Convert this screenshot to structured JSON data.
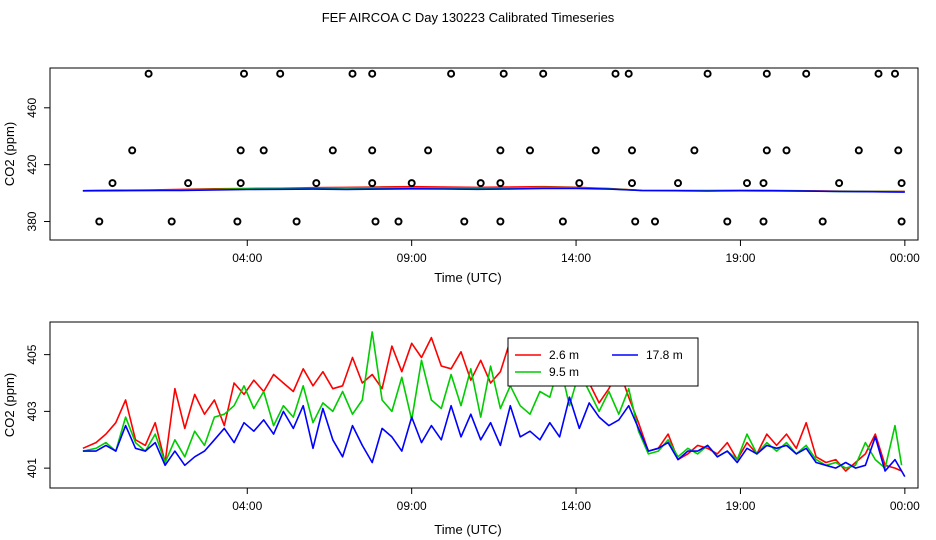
{
  "figure": {
    "title": "FEF AIRCOA C  Day 130223  Calibrated Timeseries"
  },
  "colors": {
    "series_2_6m": "#ff0000",
    "series_9_5m": "#00cc00",
    "series_17_8m": "#0000ff",
    "axes": "#000000",
    "background": "#ffffff"
  },
  "chart_data": [
    {
      "type": "line",
      "title": "",
      "xlabel": "Time (UTC)",
      "ylabel": "CO2 (ppm)",
      "x_unit": "hours UTC",
      "xlim": [
        -2.0,
        24.4
      ],
      "ylim": [
        367,
        488
      ],
      "x_ticks": [
        4,
        9,
        14,
        19,
        24
      ],
      "x_tick_labels": [
        "04:00",
        "09:00",
        "14:00",
        "19:00",
        "00:00"
      ],
      "y_ticks": [
        380,
        420,
        460
      ],
      "y_tick_labels": [
        "380",
        "420",
        "460"
      ],
      "grid": false,
      "legend": "none",
      "markers": {
        "name": "",
        "style": "open-circle",
        "points": [
          [
            -0.5,
            380
          ],
          [
            1.7,
            380
          ],
          [
            3.7,
            380
          ],
          [
            5.5,
            380
          ],
          [
            7.9,
            380
          ],
          [
            8.6,
            380
          ],
          [
            10.6,
            380
          ],
          [
            11.7,
            380
          ],
          [
            13.6,
            380
          ],
          [
            15.8,
            380
          ],
          [
            16.4,
            380
          ],
          [
            18.6,
            380
          ],
          [
            19.7,
            380
          ],
          [
            21.5,
            380
          ],
          [
            23.9,
            380
          ],
          [
            -0.1,
            407
          ],
          [
            2.2,
            407
          ],
          [
            3.8,
            407
          ],
          [
            6.1,
            407
          ],
          [
            7.8,
            407
          ],
          [
            9.0,
            407
          ],
          [
            11.1,
            407
          ],
          [
            11.7,
            407
          ],
          [
            14.1,
            407
          ],
          [
            15.7,
            407
          ],
          [
            17.1,
            407
          ],
          [
            19.2,
            407
          ],
          [
            19.7,
            407
          ],
          [
            22.0,
            407
          ],
          [
            23.9,
            407
          ],
          [
            0.5,
            430
          ],
          [
            3.8,
            430
          ],
          [
            4.5,
            430
          ],
          [
            6.6,
            430
          ],
          [
            7.8,
            430
          ],
          [
            9.5,
            430
          ],
          [
            11.7,
            430
          ],
          [
            12.6,
            430
          ],
          [
            14.6,
            430
          ],
          [
            15.7,
            430
          ],
          [
            17.6,
            430
          ],
          [
            19.8,
            430
          ],
          [
            20.4,
            430
          ],
          [
            22.6,
            430
          ],
          [
            23.8,
            430
          ],
          [
            1.0,
            484
          ],
          [
            3.9,
            484
          ],
          [
            5.0,
            484
          ],
          [
            7.2,
            484
          ],
          [
            7.8,
            484
          ],
          [
            10.2,
            484
          ],
          [
            11.8,
            484
          ],
          [
            13.0,
            484
          ],
          [
            15.2,
            484
          ],
          [
            15.6,
            484
          ],
          [
            18.0,
            484
          ],
          [
            19.8,
            484
          ],
          [
            21.0,
            484
          ],
          [
            23.2,
            484
          ],
          [
            23.7,
            484
          ]
        ]
      },
      "series": [
        {
          "name": "",
          "color": "#ff0000",
          "x": [
            -1.0,
            0.0,
            1.0,
            2.0,
            3.0,
            4.0,
            5.0,
            6.0,
            7.0,
            8.0,
            9.0,
            10.0,
            11.0,
            12.0,
            13.0,
            14.0,
            15.0,
            16.0,
            17.0,
            18.0,
            19.0,
            20.0,
            21.0,
            22.0,
            23.0,
            24.0
          ],
          "y": [
            401.7,
            402.0,
            402.2,
            402.6,
            403.0,
            403.2,
            403.4,
            403.8,
            404.0,
            404.3,
            404.5,
            404.3,
            404.0,
            404.2,
            404.5,
            404.1,
            403.2,
            401.9,
            401.8,
            401.8,
            401.9,
            401.8,
            401.6,
            401.3,
            401.2,
            401.2
          ]
        },
        {
          "name": "",
          "color": "#00cc00",
          "x": [
            -1.0,
            0.0,
            1.0,
            2.0,
            3.0,
            4.0,
            5.0,
            6.0,
            7.0,
            8.0,
            9.0,
            10.0,
            11.0,
            12.0,
            13.0,
            14.0,
            15.0,
            16.0,
            17.0,
            18.0,
            19.0,
            20.0,
            21.0,
            22.0,
            23.0,
            24.0
          ],
          "y": [
            401.6,
            401.8,
            401.9,
            402.3,
            402.6,
            403.0,
            403.2,
            403.4,
            403.7,
            403.8,
            403.7,
            403.6,
            403.5,
            403.6,
            403.9,
            403.8,
            403.0,
            401.8,
            401.7,
            401.6,
            401.8,
            401.7,
            401.5,
            401.2,
            401.1,
            401.0
          ]
        },
        {
          "name": "",
          "color": "#0000ff",
          "x": [
            -1.0,
            0.0,
            1.0,
            2.0,
            3.0,
            4.0,
            5.0,
            6.0,
            7.0,
            8.0,
            9.0,
            10.0,
            11.0,
            12.0,
            13.0,
            14.0,
            15.0,
            16.0,
            17.0,
            18.0,
            19.0,
            20.0,
            21.0,
            22.0,
            23.0,
            24.0
          ],
          "y": [
            401.6,
            401.7,
            401.8,
            401.9,
            402.2,
            402.5,
            402.7,
            402.8,
            402.6,
            402.8,
            403.0,
            402.9,
            402.7,
            402.9,
            403.2,
            403.3,
            402.8,
            401.8,
            401.7,
            401.5,
            401.7,
            401.6,
            401.4,
            401.1,
            401.0,
            400.7
          ]
        }
      ]
    },
    {
      "type": "line",
      "title": "",
      "xlabel": "Time (UTC)",
      "ylabel": "CO2 (ppm)",
      "x_unit": "hours UTC",
      "xlim": [
        -2.0,
        24.4
      ],
      "ylim": [
        400.3,
        406.15
      ],
      "x_ticks": [
        4,
        9,
        14,
        19,
        24
      ],
      "x_tick_labels": [
        "04:00",
        "09:00",
        "14:00",
        "19:00",
        "00:00"
      ],
      "y_ticks": [
        401,
        403,
        405
      ],
      "y_tick_labels": [
        "401",
        "403",
        "405"
      ],
      "grid": false,
      "legend": "upper-center",
      "legend_entries": [
        {
          "label": "2.6 m",
          "color": "#ff0000"
        },
        {
          "label": "17.8 m",
          "color": "#0000ff"
        },
        {
          "label": "9.5 m",
          "color": "#00cc00"
        }
      ],
      "series": [
        {
          "name": "2.6 m",
          "color": "#ff0000",
          "x": [
            -1.0,
            -0.6,
            -0.3,
            0.0,
            0.3,
            0.6,
            0.9,
            1.2,
            1.5,
            1.8,
            2.1,
            2.4,
            2.7,
            3.0,
            3.3,
            3.6,
            3.9,
            4.2,
            4.5,
            4.8,
            5.1,
            5.4,
            5.7,
            6.0,
            6.3,
            6.6,
            6.9,
            7.2,
            7.5,
            7.8,
            8.1,
            8.4,
            8.7,
            9.0,
            9.3,
            9.6,
            9.9,
            10.2,
            10.5,
            10.8,
            11.1,
            11.4,
            11.7,
            12.0,
            12.3,
            12.6,
            12.9,
            13.2,
            13.5,
            13.8,
            14.1,
            14.4,
            14.7,
            15.0,
            15.3,
            15.6,
            15.9,
            16.2,
            16.5,
            16.8,
            17.1,
            17.4,
            17.7,
            18.0,
            18.3,
            18.6,
            18.9,
            19.2,
            19.5,
            19.8,
            20.1,
            20.4,
            20.7,
            21.0,
            21.3,
            21.6,
            21.9,
            22.2,
            22.5,
            22.8,
            23.1,
            23.4,
            23.7,
            23.9
          ],
          "y": [
            401.7,
            401.9,
            402.2,
            402.6,
            403.4,
            402.0,
            401.8,
            402.6,
            401.2,
            403.8,
            402.4,
            403.6,
            402.9,
            403.4,
            402.5,
            404.0,
            403.6,
            404.1,
            403.7,
            404.3,
            404.0,
            403.7,
            404.5,
            403.9,
            404.4,
            403.8,
            403.9,
            404.9,
            404.0,
            404.3,
            403.8,
            405.3,
            404.4,
            405.4,
            404.9,
            405.6,
            404.6,
            404.5,
            405.1,
            404.1,
            404.8,
            404.0,
            404.4,
            405.5,
            404.3,
            404.0,
            404.6,
            405.0,
            404.2,
            405.4,
            404.3,
            404.0,
            403.3,
            403.8,
            404.5,
            403.5,
            402.6,
            401.6,
            401.7,
            402.2,
            401.3,
            401.5,
            401.8,
            401.7,
            401.5,
            401.9,
            401.3,
            401.9,
            401.5,
            402.2,
            401.8,
            402.2,
            401.7,
            402.6,
            401.4,
            401.2,
            401.3,
            400.9,
            401.2,
            401.5,
            402.2,
            401.1,
            401.0,
            400.9
          ]
        },
        {
          "name": "9.5 m",
          "color": "#00cc00",
          "x": [
            -1.0,
            -0.6,
            -0.3,
            0.0,
            0.3,
            0.6,
            0.9,
            1.2,
            1.5,
            1.8,
            2.1,
            2.4,
            2.7,
            3.0,
            3.3,
            3.6,
            3.9,
            4.2,
            4.5,
            4.8,
            5.1,
            5.4,
            5.7,
            6.0,
            6.3,
            6.6,
            6.9,
            7.2,
            7.5,
            7.8,
            8.1,
            8.4,
            8.7,
            9.0,
            9.3,
            9.6,
            9.9,
            10.2,
            10.5,
            10.8,
            11.1,
            11.4,
            11.7,
            12.0,
            12.3,
            12.6,
            12.9,
            13.2,
            13.5,
            13.8,
            14.1,
            14.4,
            14.7,
            15.0,
            15.3,
            15.6,
            15.9,
            16.2,
            16.5,
            16.8,
            17.1,
            17.4,
            17.7,
            18.0,
            18.3,
            18.6,
            18.9,
            19.2,
            19.5,
            19.8,
            20.1,
            20.4,
            20.7,
            21.0,
            21.3,
            21.6,
            21.9,
            22.2,
            22.5,
            22.8,
            23.1,
            23.4,
            23.7,
            23.9
          ],
          "y": [
            401.6,
            401.7,
            401.9,
            401.6,
            402.8,
            401.9,
            401.6,
            402.2,
            401.2,
            402.0,
            401.4,
            402.3,
            401.8,
            402.8,
            402.9,
            403.2,
            403.9,
            403.1,
            403.7,
            402.5,
            403.2,
            402.8,
            403.9,
            402.6,
            403.3,
            403.0,
            403.7,
            402.9,
            403.4,
            405.8,
            403.4,
            403.0,
            404.2,
            402.7,
            404.8,
            403.4,
            403.1,
            404.3,
            403.2,
            404.5,
            402.8,
            404.6,
            403.1,
            403.9,
            403.2,
            402.9,
            403.7,
            403.5,
            404.7,
            403.2,
            404.4,
            403.7,
            403.0,
            403.7,
            402.9,
            403.8,
            402.3,
            401.5,
            401.6,
            402.0,
            401.4,
            401.7,
            401.5,
            401.8,
            401.4,
            401.6,
            401.3,
            402.2,
            401.5,
            401.9,
            401.6,
            401.9,
            401.5,
            401.8,
            401.3,
            401.1,
            401.2,
            401.0,
            401.1,
            401.9,
            401.3,
            401.0,
            402.5,
            401.1
          ]
        },
        {
          "name": "17.8 m",
          "color": "#0000ff",
          "x": [
            -1.0,
            -0.6,
            -0.3,
            0.0,
            0.3,
            0.6,
            0.9,
            1.2,
            1.5,
            1.8,
            2.1,
            2.4,
            2.7,
            3.0,
            3.3,
            3.6,
            3.9,
            4.2,
            4.5,
            4.8,
            5.1,
            5.4,
            5.7,
            6.0,
            6.3,
            6.6,
            6.9,
            7.2,
            7.5,
            7.8,
            8.1,
            8.4,
            8.7,
            9.0,
            9.3,
            9.6,
            9.9,
            10.2,
            10.5,
            10.8,
            11.1,
            11.4,
            11.7,
            12.0,
            12.3,
            12.6,
            12.9,
            13.2,
            13.5,
            13.8,
            14.1,
            14.4,
            14.7,
            15.0,
            15.3,
            15.6,
            15.9,
            16.2,
            16.5,
            16.8,
            17.1,
            17.4,
            17.7,
            18.0,
            18.3,
            18.6,
            18.9,
            19.2,
            19.5,
            19.8,
            20.1,
            20.4,
            20.7,
            21.0,
            21.3,
            21.6,
            21.9,
            22.2,
            22.5,
            22.8,
            23.1,
            23.4,
            23.7,
            23.9,
            24.0
          ],
          "y": [
            401.6,
            401.6,
            401.8,
            401.6,
            402.5,
            401.7,
            401.6,
            401.9,
            401.1,
            401.6,
            401.1,
            401.4,
            401.6,
            402.0,
            402.4,
            401.9,
            402.6,
            402.3,
            402.7,
            402.2,
            403.0,
            402.4,
            403.2,
            401.7,
            403.1,
            402.0,
            401.4,
            402.5,
            401.8,
            401.2,
            402.4,
            402.1,
            401.6,
            402.8,
            401.9,
            402.5,
            402.0,
            403.2,
            402.1,
            402.9,
            402.0,
            402.6,
            401.8,
            403.2,
            402.1,
            402.3,
            402.0,
            402.6,
            402.1,
            403.5,
            402.4,
            403.3,
            402.8,
            402.5,
            402.7,
            403.2,
            402.4,
            401.6,
            401.7,
            401.9,
            401.3,
            401.6,
            401.6,
            401.8,
            401.4,
            401.6,
            401.2,
            401.7,
            401.5,
            401.8,
            401.7,
            401.8,
            401.5,
            401.7,
            401.2,
            401.1,
            401.0,
            401.2,
            401.0,
            401.1,
            402.1,
            400.9,
            401.3,
            400.9,
            400.7
          ]
        }
      ]
    }
  ]
}
